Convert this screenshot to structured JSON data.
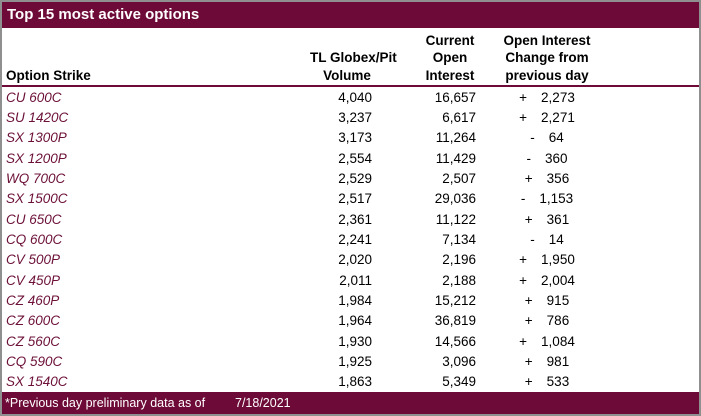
{
  "title": "Top 15 most active options",
  "colors": {
    "maroon": "#6E0A37",
    "strike_text": "#6C1038",
    "border_gray": "#8F8F8F"
  },
  "columns": {
    "strike": "Option Strike",
    "volume": [
      "TL Globex/Pit",
      "Volume"
    ],
    "open_interest": [
      "Current",
      "Open",
      "Interest"
    ],
    "oi_change": [
      "Open Interest",
      "Change from",
      "previous day"
    ]
  },
  "rows": [
    {
      "strike": "CU 600C",
      "volume": "4,040",
      "open_interest": "16,657",
      "change_sign": "+",
      "change": "2,273"
    },
    {
      "strike": "SU 1420C",
      "volume": "3,237",
      "open_interest": "6,617",
      "change_sign": "+",
      "change": "2,271"
    },
    {
      "strike": "SX 1300P",
      "volume": "3,173",
      "open_interest": "11,264",
      "change_sign": "-",
      "change": "64"
    },
    {
      "strike": "SX 1200P",
      "volume": "2,554",
      "open_interest": "11,429",
      "change_sign": "-",
      "change": "360"
    },
    {
      "strike": "WQ 700C",
      "volume": "2,529",
      "open_interest": "2,507",
      "change_sign": "+",
      "change": "356"
    },
    {
      "strike": "SX 1500C",
      "volume": "2,517",
      "open_interest": "29,036",
      "change_sign": "-",
      "change": "1,153"
    },
    {
      "strike": "CU 650C",
      "volume": "2,361",
      "open_interest": "11,122",
      "change_sign": "+",
      "change": "361"
    },
    {
      "strike": "CQ 600C",
      "volume": "2,241",
      "open_interest": "7,134",
      "change_sign": "-",
      "change": "14"
    },
    {
      "strike": "CV 500P",
      "volume": "2,020",
      "open_interest": "2,196",
      "change_sign": "+",
      "change": "1,950"
    },
    {
      "strike": "CV 450P",
      "volume": "2,011",
      "open_interest": "2,188",
      "change_sign": "+",
      "change": "2,004"
    },
    {
      "strike": "CZ 460P",
      "volume": "1,984",
      "open_interest": "15,212",
      "change_sign": "+",
      "change": "915"
    },
    {
      "strike": "CZ 600C",
      "volume": "1,964",
      "open_interest": "36,819",
      "change_sign": "+",
      "change": "786"
    },
    {
      "strike": "CZ 560C",
      "volume": "1,930",
      "open_interest": "14,566",
      "change_sign": "+",
      "change": "1,084"
    },
    {
      "strike": "CQ 590C",
      "volume": "1,925",
      "open_interest": "3,096",
      "change_sign": "+",
      "change": "981"
    },
    {
      "strike": "SX 1540C",
      "volume": "1,863",
      "open_interest": "5,349",
      "change_sign": "+",
      "change": "533"
    }
  ],
  "footer": {
    "note": "*Previous day preliminary data as of",
    "date": "7/18/2021"
  }
}
